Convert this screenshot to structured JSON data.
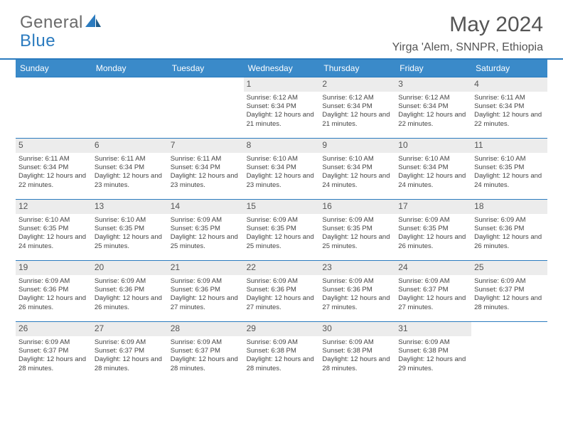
{
  "logo": {
    "word1": "General",
    "word2": "Blue"
  },
  "title": "May 2024",
  "location": "Yirga 'Alem, SNNPR, Ethiopia",
  "weekdays": [
    "Sunday",
    "Monday",
    "Tuesday",
    "Wednesday",
    "Thursday",
    "Friday",
    "Saturday"
  ],
  "colors": {
    "header_bg": "#3a8ac9",
    "border": "#2b7bbf",
    "daynum_bg": "#ececec",
    "text": "#444444"
  },
  "cells": [
    {
      "day": "",
      "sunrise": "",
      "sunset": "",
      "daylight": ""
    },
    {
      "day": "",
      "sunrise": "",
      "sunset": "",
      "daylight": ""
    },
    {
      "day": "",
      "sunrise": "",
      "sunset": "",
      "daylight": ""
    },
    {
      "day": "1",
      "sunrise": "Sunrise: 6:12 AM",
      "sunset": "Sunset: 6:34 PM",
      "daylight": "Daylight: 12 hours and 21 minutes."
    },
    {
      "day": "2",
      "sunrise": "Sunrise: 6:12 AM",
      "sunset": "Sunset: 6:34 PM",
      "daylight": "Daylight: 12 hours and 21 minutes."
    },
    {
      "day": "3",
      "sunrise": "Sunrise: 6:12 AM",
      "sunset": "Sunset: 6:34 PM",
      "daylight": "Daylight: 12 hours and 22 minutes."
    },
    {
      "day": "4",
      "sunrise": "Sunrise: 6:11 AM",
      "sunset": "Sunset: 6:34 PM",
      "daylight": "Daylight: 12 hours and 22 minutes."
    },
    {
      "day": "5",
      "sunrise": "Sunrise: 6:11 AM",
      "sunset": "Sunset: 6:34 PM",
      "daylight": "Daylight: 12 hours and 22 minutes."
    },
    {
      "day": "6",
      "sunrise": "Sunrise: 6:11 AM",
      "sunset": "Sunset: 6:34 PM",
      "daylight": "Daylight: 12 hours and 23 minutes."
    },
    {
      "day": "7",
      "sunrise": "Sunrise: 6:11 AM",
      "sunset": "Sunset: 6:34 PM",
      "daylight": "Daylight: 12 hours and 23 minutes."
    },
    {
      "day": "8",
      "sunrise": "Sunrise: 6:10 AM",
      "sunset": "Sunset: 6:34 PM",
      "daylight": "Daylight: 12 hours and 23 minutes."
    },
    {
      "day": "9",
      "sunrise": "Sunrise: 6:10 AM",
      "sunset": "Sunset: 6:34 PM",
      "daylight": "Daylight: 12 hours and 24 minutes."
    },
    {
      "day": "10",
      "sunrise": "Sunrise: 6:10 AM",
      "sunset": "Sunset: 6:34 PM",
      "daylight": "Daylight: 12 hours and 24 minutes."
    },
    {
      "day": "11",
      "sunrise": "Sunrise: 6:10 AM",
      "sunset": "Sunset: 6:35 PM",
      "daylight": "Daylight: 12 hours and 24 minutes."
    },
    {
      "day": "12",
      "sunrise": "Sunrise: 6:10 AM",
      "sunset": "Sunset: 6:35 PM",
      "daylight": "Daylight: 12 hours and 24 minutes."
    },
    {
      "day": "13",
      "sunrise": "Sunrise: 6:10 AM",
      "sunset": "Sunset: 6:35 PM",
      "daylight": "Daylight: 12 hours and 25 minutes."
    },
    {
      "day": "14",
      "sunrise": "Sunrise: 6:09 AM",
      "sunset": "Sunset: 6:35 PM",
      "daylight": "Daylight: 12 hours and 25 minutes."
    },
    {
      "day": "15",
      "sunrise": "Sunrise: 6:09 AM",
      "sunset": "Sunset: 6:35 PM",
      "daylight": "Daylight: 12 hours and 25 minutes."
    },
    {
      "day": "16",
      "sunrise": "Sunrise: 6:09 AM",
      "sunset": "Sunset: 6:35 PM",
      "daylight": "Daylight: 12 hours and 25 minutes."
    },
    {
      "day": "17",
      "sunrise": "Sunrise: 6:09 AM",
      "sunset": "Sunset: 6:35 PM",
      "daylight": "Daylight: 12 hours and 26 minutes."
    },
    {
      "day": "18",
      "sunrise": "Sunrise: 6:09 AM",
      "sunset": "Sunset: 6:36 PM",
      "daylight": "Daylight: 12 hours and 26 minutes."
    },
    {
      "day": "19",
      "sunrise": "Sunrise: 6:09 AM",
      "sunset": "Sunset: 6:36 PM",
      "daylight": "Daylight: 12 hours and 26 minutes."
    },
    {
      "day": "20",
      "sunrise": "Sunrise: 6:09 AM",
      "sunset": "Sunset: 6:36 PM",
      "daylight": "Daylight: 12 hours and 26 minutes."
    },
    {
      "day": "21",
      "sunrise": "Sunrise: 6:09 AM",
      "sunset": "Sunset: 6:36 PM",
      "daylight": "Daylight: 12 hours and 27 minutes."
    },
    {
      "day": "22",
      "sunrise": "Sunrise: 6:09 AM",
      "sunset": "Sunset: 6:36 PM",
      "daylight": "Daylight: 12 hours and 27 minutes."
    },
    {
      "day": "23",
      "sunrise": "Sunrise: 6:09 AM",
      "sunset": "Sunset: 6:36 PM",
      "daylight": "Daylight: 12 hours and 27 minutes."
    },
    {
      "day": "24",
      "sunrise": "Sunrise: 6:09 AM",
      "sunset": "Sunset: 6:37 PM",
      "daylight": "Daylight: 12 hours and 27 minutes."
    },
    {
      "day": "25",
      "sunrise": "Sunrise: 6:09 AM",
      "sunset": "Sunset: 6:37 PM",
      "daylight": "Daylight: 12 hours and 28 minutes."
    },
    {
      "day": "26",
      "sunrise": "Sunrise: 6:09 AM",
      "sunset": "Sunset: 6:37 PM",
      "daylight": "Daylight: 12 hours and 28 minutes."
    },
    {
      "day": "27",
      "sunrise": "Sunrise: 6:09 AM",
      "sunset": "Sunset: 6:37 PM",
      "daylight": "Daylight: 12 hours and 28 minutes."
    },
    {
      "day": "28",
      "sunrise": "Sunrise: 6:09 AM",
      "sunset": "Sunset: 6:37 PM",
      "daylight": "Daylight: 12 hours and 28 minutes."
    },
    {
      "day": "29",
      "sunrise": "Sunrise: 6:09 AM",
      "sunset": "Sunset: 6:38 PM",
      "daylight": "Daylight: 12 hours and 28 minutes."
    },
    {
      "day": "30",
      "sunrise": "Sunrise: 6:09 AM",
      "sunset": "Sunset: 6:38 PM",
      "daylight": "Daylight: 12 hours and 28 minutes."
    },
    {
      "day": "31",
      "sunrise": "Sunrise: 6:09 AM",
      "sunset": "Sunset: 6:38 PM",
      "daylight": "Daylight: 12 hours and 29 minutes."
    },
    {
      "day": "",
      "sunrise": "",
      "sunset": "",
      "daylight": ""
    }
  ]
}
